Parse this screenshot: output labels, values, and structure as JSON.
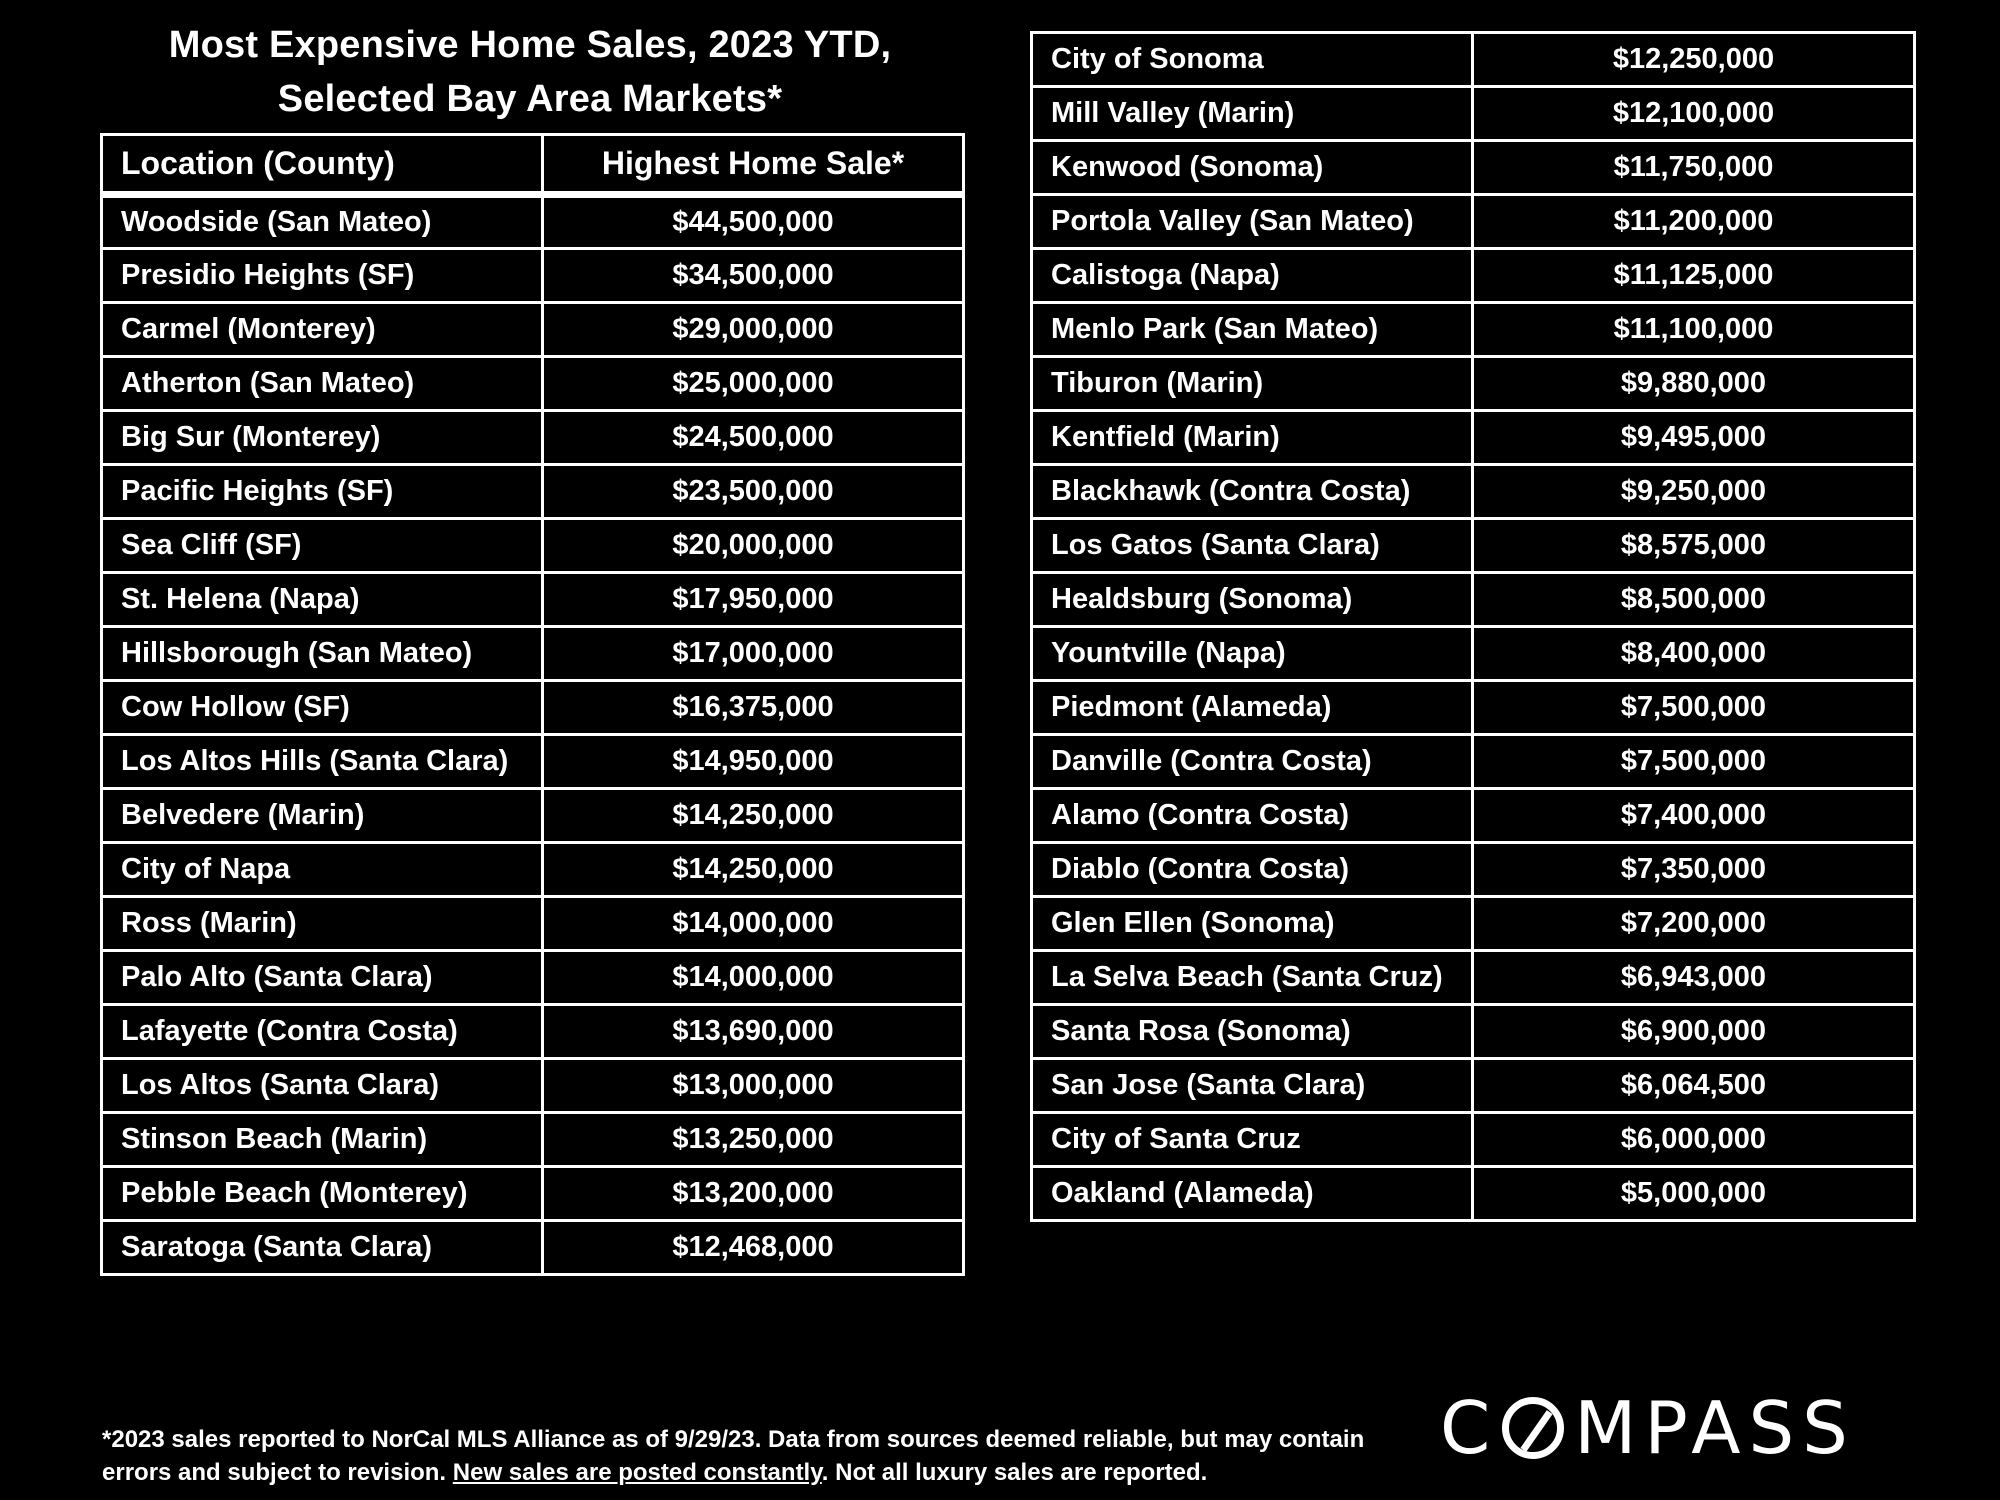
{
  "title": {
    "line1": "Most Expensive Home Sales, 2023 YTD,",
    "line2": "Selected Bay Area Markets*"
  },
  "table": {
    "headers": {
      "location": "Location (County)",
      "sale": "Highest Home Sale*"
    },
    "rows_left": [
      {
        "location": "Woodside (San Mateo)",
        "sale": "$44,500,000"
      },
      {
        "location": "Presidio Heights (SF)",
        "sale": "$34,500,000"
      },
      {
        "location": "Carmel (Monterey)",
        "sale": "$29,000,000"
      },
      {
        "location": "Atherton (San Mateo)",
        "sale": "$25,000,000"
      },
      {
        "location": "Big Sur (Monterey)",
        "sale": "$24,500,000"
      },
      {
        "location": "Pacific Heights (SF)",
        "sale": "$23,500,000"
      },
      {
        "location": "Sea Cliff (SF)",
        "sale": "$20,000,000"
      },
      {
        "location": "St. Helena (Napa)",
        "sale": "$17,950,000"
      },
      {
        "location": "Hillsborough (San Mateo)",
        "sale": "$17,000,000"
      },
      {
        "location": "Cow Hollow (SF)",
        "sale": "$16,375,000"
      },
      {
        "location": "Los Altos Hills (Santa Clara)",
        "sale": "$14,950,000"
      },
      {
        "location": "Belvedere (Marin)",
        "sale": "$14,250,000"
      },
      {
        "location": "City of Napa",
        "sale": "$14,250,000"
      },
      {
        "location": "Ross (Marin)",
        "sale": "$14,000,000"
      },
      {
        "location": "Palo Alto (Santa Clara)",
        "sale": "$14,000,000"
      },
      {
        "location": "Lafayette (Contra Costa)",
        "sale": "$13,690,000"
      },
      {
        "location": "Los Altos (Santa Clara)",
        "sale": "$13,000,000"
      },
      {
        "location": "Stinson Beach (Marin)",
        "sale": "$13,250,000"
      },
      {
        "location": "Pebble Beach (Monterey)",
        "sale": "$13,200,000"
      },
      {
        "location": "Saratoga (Santa Clara)",
        "sale": "$12,468,000"
      }
    ],
    "rows_right": [
      {
        "location": "City of Sonoma",
        "sale": "$12,250,000"
      },
      {
        "location": "Mill Valley (Marin)",
        "sale": "$12,100,000"
      },
      {
        "location": "Kenwood (Sonoma)",
        "sale": "$11,750,000"
      },
      {
        "location": "Portola Valley (San Mateo)",
        "sale": "$11,200,000"
      },
      {
        "location": "Calistoga (Napa)",
        "sale": "$11,125,000"
      },
      {
        "location": "Menlo Park (San Mateo)",
        "sale": "$11,100,000"
      },
      {
        "location": "Tiburon (Marin)",
        "sale": "$9,880,000"
      },
      {
        "location": "Kentfield (Marin)",
        "sale": "$9,495,000"
      },
      {
        "location": "Blackhawk (Contra Costa)",
        "sale": "$9,250,000"
      },
      {
        "location": "Los Gatos (Santa Clara)",
        "sale": "$8,575,000"
      },
      {
        "location": "Healdsburg (Sonoma)",
        "sale": "$8,500,000"
      },
      {
        "location": "Yountville (Napa)",
        "sale": "$8,400,000"
      },
      {
        "location": "Piedmont (Alameda)",
        "sale": "$7,500,000"
      },
      {
        "location": "Danville (Contra Costa)",
        "sale": "$7,500,000"
      },
      {
        "location": "Alamo (Contra Costa)",
        "sale": "$7,400,000"
      },
      {
        "location": "Diablo (Contra Costa)",
        "sale": "$7,350,000"
      },
      {
        "location": "Glen Ellen (Sonoma)",
        "sale": "$7,200,000"
      },
      {
        "location": "La Selva Beach (Santa Cruz)",
        "sale": "$6,943,000"
      },
      {
        "location": "Santa Rosa (Sonoma)",
        "sale": "$6,900,000"
      },
      {
        "location": "San Jose (Santa Clara)",
        "sale": "$6,064,500"
      },
      {
        "location": "City of Santa Cruz",
        "sale": "$6,000,000"
      },
      {
        "location": "Oakland (Alameda)",
        "sale": "$5,000,000"
      }
    ]
  },
  "footnote": {
    "text_before": "*2023 sales reported to NorCal MLS Alliance as of 9/29/23. Data from sources deemed reliable, but may contain errors and subject to revision. ",
    "underlined": "New sales are posted constantly",
    "text_after": ". Not all luxury sales are reported."
  },
  "logo": {
    "text": "COMPASS",
    "letter_c": "C",
    "letters_rest": "MPASS"
  },
  "colors": {
    "background": "#000000",
    "text": "#ffffff"
  }
}
